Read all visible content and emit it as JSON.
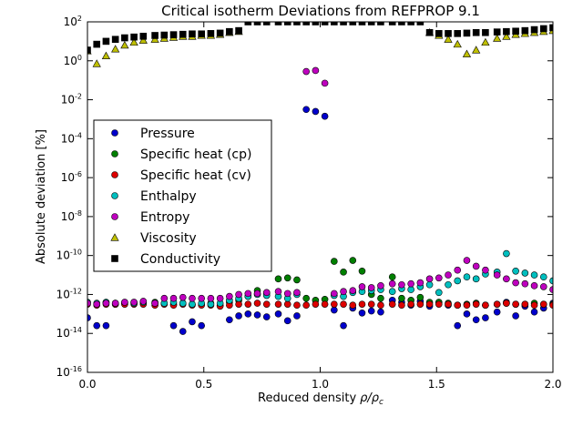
{
  "chart_data": {
    "type": "scatter",
    "title": "Critical isotherm Deviations from REFPROP 9.1",
    "xlabel": "Reduced density ρ/ρc",
    "xlabel_main": "Reduced density",
    "xlabel_symbol": "ρ/ρ",
    "xlabel_sub": "c",
    "ylabel": "Absolute deviation [%]",
    "xlim": [
      0,
      2.0
    ],
    "ylim_log10": [
      -16,
      2
    ],
    "yscale": "log",
    "xticks": [
      {
        "v": 0.0,
        "label": "0.0"
      },
      {
        "v": 0.5,
        "label": "0.5"
      },
      {
        "v": 1.0,
        "label": "1.0"
      },
      {
        "v": 1.5,
        "label": "1.5"
      },
      {
        "v": 2.0,
        "label": "2.0"
      }
    ],
    "yticks": [
      {
        "exp": 2,
        "base": "10",
        "sup": "2"
      },
      {
        "exp": 0,
        "base": "10",
        "sup": "0"
      },
      {
        "exp": -2,
        "base": "10",
        "sup": "-2"
      },
      {
        "exp": -4,
        "base": "10",
        "sup": "-4"
      },
      {
        "exp": -6,
        "base": "10",
        "sup": "-6"
      },
      {
        "exp": -8,
        "base": "10",
        "sup": "-8"
      },
      {
        "exp": -10,
        "base": "10",
        "sup": "-10"
      },
      {
        "exp": -12,
        "base": "10",
        "sup": "-12"
      },
      {
        "exp": -14,
        "base": "10",
        "sup": "-14"
      },
      {
        "exp": -16,
        "base": "10",
        "sup": "-16"
      }
    ],
    "legend_position": "upper-left",
    "series": [
      {
        "name": "Pressure",
        "color": "#0000cc",
        "marker": "circle",
        "x": [
          0.0,
          0.04,
          0.08,
          0.37,
          0.41,
          0.45,
          0.49,
          0.61,
          0.65,
          0.69,
          0.73,
          0.77,
          0.82,
          0.86,
          0.9,
          0.94,
          0.98,
          1.02,
          1.06,
          1.1,
          1.14,
          1.18,
          1.22,
          1.26,
          1.31,
          1.35,
          1.39,
          1.43,
          1.47,
          1.51,
          1.55,
          1.59,
          1.63,
          1.67,
          1.71,
          1.76,
          1.8,
          1.84,
          1.88,
          1.92,
          1.96,
          2.0
        ],
        "log10y": [
          -13.2,
          -13.6,
          -13.6,
          -13.6,
          -13.9,
          -13.4,
          -13.6,
          -13.3,
          -13.1,
          -13.0,
          -13.05,
          -13.15,
          -13.0,
          -13.35,
          -13.1,
          -2.5,
          -2.6,
          -2.85,
          -12.8,
          -13.6,
          -12.7,
          -12.95,
          -12.85,
          -12.9,
          -12.3,
          -12.4,
          -12.55,
          -12.35,
          -12.6,
          -12.4,
          -12.55,
          -13.6,
          -13.0,
          -13.3,
          -13.2,
          -12.9,
          -12.4,
          -13.1,
          -12.6,
          -12.9,
          -12.7,
          -12.45
        ]
      },
      {
        "name": "Specific heat (cp)",
        "color": "#007f00",
        "marker": "circle",
        "x": [
          0.0,
          0.04,
          0.08,
          0.12,
          0.16,
          0.2,
          0.24,
          0.29,
          0.33,
          0.37,
          0.41,
          0.45,
          0.49,
          0.53,
          0.57,
          0.61,
          0.65,
          0.69,
          0.73,
          0.77,
          0.82,
          0.86,
          0.9,
          0.94,
          0.98,
          1.02,
          1.06,
          1.1,
          1.14,
          1.18,
          1.22,
          1.26,
          1.31,
          1.35,
          1.39,
          1.43,
          1.47,
          1.51,
          1.55,
          1.59,
          1.63,
          1.67,
          1.71,
          1.76,
          1.8,
          1.84,
          1.88,
          1.92,
          1.96,
          2.0
        ],
        "log10y": [
          -12.4,
          -12.5,
          -12.4,
          -12.5,
          -12.45,
          -12.4,
          -12.4,
          -12.4,
          -12.45,
          -12.5,
          -12.45,
          -12.5,
          -12.5,
          -12.45,
          -12.55,
          -12.4,
          -12.3,
          -12.1,
          -11.8,
          -11.95,
          -11.2,
          -11.15,
          -11.25,
          -12.2,
          -12.3,
          -12.25,
          -10.3,
          -10.85,
          -10.25,
          -10.8,
          -12.0,
          -12.2,
          -11.1,
          -12.2,
          -12.3,
          -12.15,
          -12.4,
          -12.4,
          -12.45,
          -12.55,
          -12.5,
          -12.45,
          -12.55,
          -12.5,
          -12.45,
          -12.5,
          -12.5,
          -12.45,
          -12.5,
          -12.5
        ]
      },
      {
        "name": "Specific heat (cv)",
        "color": "#dd0000",
        "marker": "circle",
        "x": [
          0.0,
          0.04,
          0.08,
          0.12,
          0.16,
          0.2,
          0.24,
          0.29,
          0.33,
          0.37,
          0.41,
          0.45,
          0.49,
          0.53,
          0.57,
          0.61,
          0.65,
          0.69,
          0.73,
          0.77,
          0.82,
          0.86,
          0.9,
          0.94,
          0.98,
          1.02,
          1.06,
          1.1,
          1.14,
          1.18,
          1.22,
          1.26,
          1.31,
          1.35,
          1.39,
          1.43,
          1.47,
          1.51,
          1.55,
          1.59,
          1.63,
          1.67,
          1.71,
          1.76,
          1.8,
          1.84,
          1.88,
          1.92,
          1.96,
          2.0
        ],
        "log10y": [
          -12.5,
          -12.55,
          -12.5,
          -12.5,
          -12.5,
          -12.5,
          -12.5,
          -12.55,
          -12.5,
          -12.55,
          -12.5,
          -12.55,
          -12.55,
          -12.55,
          -12.6,
          -12.55,
          -12.5,
          -12.5,
          -12.45,
          -12.5,
          -12.5,
          -12.5,
          -12.55,
          -12.55,
          -12.5,
          -12.5,
          -12.5,
          -12.5,
          -12.55,
          -12.5,
          -12.5,
          -12.55,
          -12.5,
          -12.55,
          -12.5,
          -12.5,
          -12.5,
          -12.5,
          -12.5,
          -12.55,
          -12.55,
          -12.5,
          -12.55,
          -12.5,
          -12.45,
          -12.5,
          -12.5,
          -12.55,
          -12.5,
          -12.55
        ]
      },
      {
        "name": "Enthalpy",
        "color": "#00bfbf",
        "marker": "circle",
        "x": [
          0.0,
          0.04,
          0.08,
          0.12,
          0.16,
          0.2,
          0.24,
          0.29,
          0.33,
          0.37,
          0.41,
          0.45,
          0.49,
          0.53,
          0.57,
          0.61,
          0.65,
          0.69,
          0.73,
          0.77,
          0.82,
          0.86,
          0.9,
          1.06,
          1.1,
          1.14,
          1.18,
          1.22,
          1.26,
          1.31,
          1.35,
          1.39,
          1.43,
          1.47,
          1.51,
          1.55,
          1.59,
          1.63,
          1.67,
          1.71,
          1.76,
          1.8,
          1.84,
          1.88,
          1.92,
          1.96,
          2.0
        ],
        "log10y": [
          -12.4,
          -12.45,
          -12.4,
          -12.45,
          -12.4,
          -12.45,
          -12.4,
          -12.45,
          -12.45,
          -12.4,
          -12.45,
          -12.5,
          -12.45,
          -12.5,
          -12.45,
          -12.3,
          -12.2,
          -12.1,
          -12.0,
          -12.05,
          -12.1,
          -12.2,
          -12.0,
          -12.05,
          -12.1,
          -11.9,
          -11.85,
          -11.8,
          -11.75,
          -11.85,
          -11.7,
          -11.75,
          -11.6,
          -11.5,
          -11.9,
          -11.5,
          -11.3,
          -11.1,
          -11.2,
          -10.95,
          -10.85,
          -9.9,
          -10.8,
          -10.9,
          -11.0,
          -11.1,
          -11.3
        ]
      },
      {
        "name": "Entropy",
        "color": "#bf00bf",
        "marker": "circle",
        "x": [
          0.0,
          0.04,
          0.08,
          0.12,
          0.16,
          0.2,
          0.24,
          0.29,
          0.33,
          0.37,
          0.41,
          0.45,
          0.49,
          0.53,
          0.57,
          0.61,
          0.65,
          0.69,
          0.73,
          0.77,
          0.82,
          0.86,
          0.9,
          0.94,
          0.98,
          1.02,
          1.06,
          1.1,
          1.14,
          1.18,
          1.22,
          1.26,
          1.31,
          1.35,
          1.39,
          1.43,
          1.47,
          1.51,
          1.55,
          1.59,
          1.63,
          1.67,
          1.71,
          1.76,
          1.8,
          1.84,
          1.88,
          1.92,
          1.96,
          2.0
        ],
        "log10y": [
          -12.45,
          -12.5,
          -12.45,
          -12.45,
          -12.4,
          -12.4,
          -12.35,
          -12.45,
          -12.2,
          -12.2,
          -12.15,
          -12.2,
          -12.2,
          -12.2,
          -12.2,
          -12.1,
          -12.0,
          -11.95,
          -11.95,
          -11.9,
          -11.85,
          -11.95,
          -11.9,
          -0.55,
          -0.5,
          -1.15,
          -11.95,
          -11.85,
          -11.8,
          -11.6,
          -11.65,
          -11.55,
          -11.45,
          -11.5,
          -11.45,
          -11.4,
          -11.2,
          -11.15,
          -11.0,
          -10.75,
          -10.25,
          -10.55,
          -10.75,
          -11.0,
          -11.2,
          -11.4,
          -11.45,
          -11.55,
          -11.6,
          -11.75
        ]
      },
      {
        "name": "Viscosity",
        "color": "#bfbf00",
        "marker": "triangle",
        "x": [
          0.0,
          0.04,
          0.08,
          0.12,
          0.16,
          0.2,
          0.24,
          0.29,
          0.33,
          0.37,
          0.41,
          0.45,
          0.49,
          0.53,
          0.57,
          0.61,
          0.65,
          1.47,
          1.51,
          1.55,
          1.59,
          1.63,
          1.67,
          1.71,
          1.76,
          1.8,
          1.84,
          1.88,
          1.92,
          1.96,
          2.0
        ],
        "log10y": [
          0.5,
          -0.15,
          0.25,
          0.6,
          0.8,
          0.95,
          1.05,
          1.1,
          1.15,
          1.2,
          1.25,
          1.25,
          1.3,
          1.3,
          1.35,
          1.45,
          1.5,
          1.45,
          1.3,
          1.1,
          0.85,
          0.35,
          0.55,
          0.95,
          1.15,
          1.25,
          1.35,
          1.4,
          1.45,
          1.5,
          1.55
        ]
      },
      {
        "name": "Conductivity",
        "color": "#000000",
        "marker": "square",
        "x": [
          0.0,
          0.04,
          0.08,
          0.12,
          0.16,
          0.2,
          0.24,
          0.29,
          0.33,
          0.37,
          0.41,
          0.45,
          0.49,
          0.53,
          0.57,
          0.61,
          0.65,
          0.69,
          0.73,
          0.77,
          0.82,
          0.86,
          0.9,
          0.94,
          0.98,
          1.02,
          1.06,
          1.1,
          1.14,
          1.18,
          1.22,
          1.26,
          1.31,
          1.35,
          1.39,
          1.43,
          1.47,
          1.51,
          1.55,
          1.59,
          1.63,
          1.67,
          1.71,
          1.76,
          1.8,
          1.84,
          1.88,
          1.92,
          1.96,
          2.0
        ],
        "log10y": [
          0.55,
          0.85,
          1.0,
          1.1,
          1.18,
          1.22,
          1.26,
          1.3,
          1.32,
          1.34,
          1.36,
          1.38,
          1.38,
          1.4,
          1.42,
          1.5,
          1.55,
          2.0,
          2.0,
          2.0,
          2.0,
          2.0,
          2.0,
          2.0,
          2.0,
          2.0,
          2.0,
          2.0,
          2.0,
          2.0,
          2.0,
          2.0,
          2.0,
          2.0,
          2.0,
          2.0,
          1.45,
          1.4,
          1.4,
          1.4,
          1.42,
          1.45,
          1.45,
          1.48,
          1.5,
          1.52,
          1.55,
          1.6,
          1.65,
          1.7
        ]
      }
    ]
  }
}
